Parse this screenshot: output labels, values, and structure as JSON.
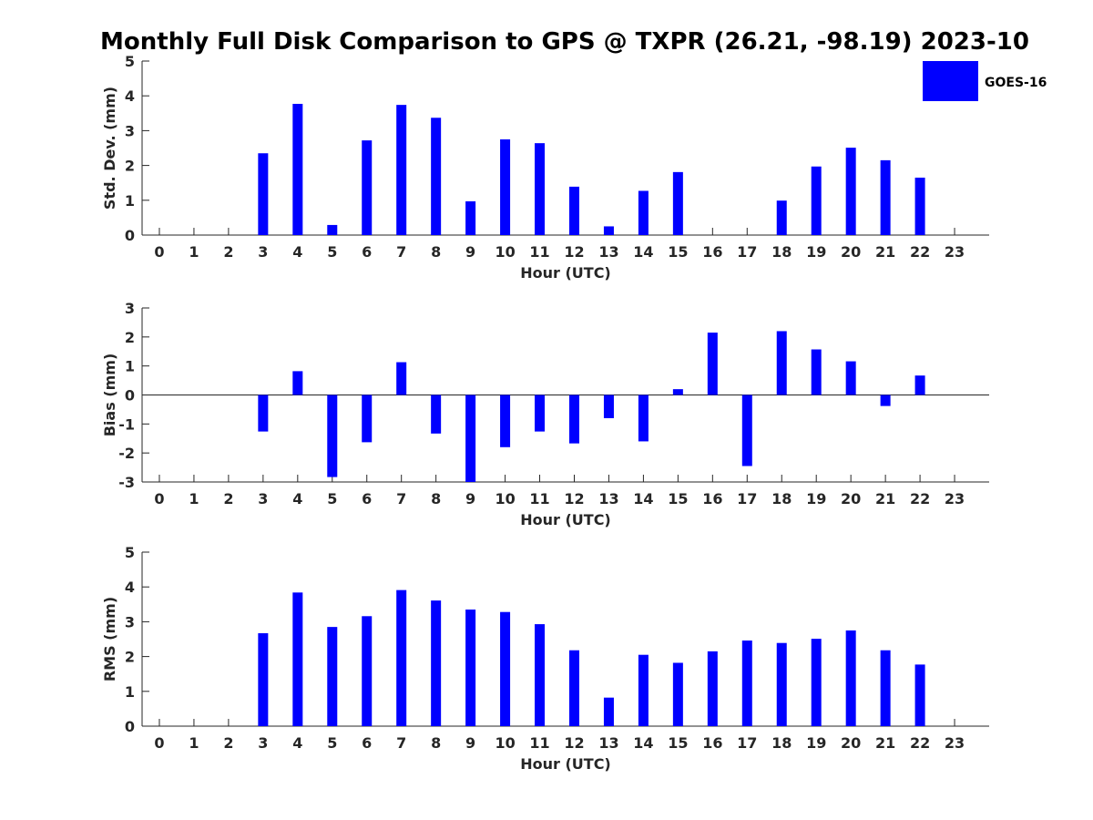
{
  "title": "Monthly Full Disk Comparison to GPS @ TXPR (26.21, -98.19) 2023-10",
  "legend": {
    "label": "GOES-16",
    "color": "#0000ff"
  },
  "chart_data": [
    {
      "type": "bar",
      "xlabel": "Hour (UTC)",
      "ylabel": "Std. Dev. (mm)",
      "ylim": [
        0,
        5
      ],
      "yticks": [
        "0",
        "1",
        "2",
        "3",
        "4",
        "5"
      ],
      "categories": [
        "0",
        "1",
        "2",
        "3",
        "4",
        "5",
        "6",
        "7",
        "8",
        "9",
        "10",
        "11",
        "12",
        "13",
        "14",
        "15",
        "16",
        "17",
        "18",
        "19",
        "20",
        "21",
        "22",
        "23"
      ],
      "series": [
        {
          "name": "GOES-16",
          "color": "#0000ff",
          "values": [
            null,
            null,
            null,
            2.35,
            3.77,
            0.29,
            2.72,
            3.74,
            3.37,
            0.97,
            2.75,
            2.64,
            1.39,
            0.25,
            1.27,
            1.81,
            null,
            null,
            0.99,
            1.97,
            2.51,
            2.15,
            1.65,
            null
          ]
        }
      ]
    },
    {
      "type": "bar",
      "xlabel": "Hour (UTC)",
      "ylabel": "Bias (mm)",
      "ylim": [
        -3,
        3
      ],
      "yticks": [
        "-3",
        "-2",
        "-1",
        "0",
        "1",
        "2",
        "3"
      ],
      "categories": [
        "0",
        "1",
        "2",
        "3",
        "4",
        "5",
        "6",
        "7",
        "8",
        "9",
        "10",
        "11",
        "12",
        "13",
        "14",
        "15",
        "16",
        "17",
        "18",
        "19",
        "20",
        "21",
        "22",
        "23"
      ],
      "series": [
        {
          "name": "GOES-16",
          "color": "#0000ff",
          "values": [
            null,
            null,
            null,
            -1.26,
            0.82,
            -2.83,
            -1.63,
            1.13,
            -1.33,
            -3.0,
            -1.8,
            -1.26,
            -1.67,
            -0.8,
            -1.6,
            0.2,
            2.15,
            -2.45,
            2.2,
            1.57,
            1.16,
            -0.38,
            0.67,
            null
          ]
        }
      ]
    },
    {
      "type": "bar",
      "xlabel": "Hour (UTC)",
      "ylabel": "RMS (mm)",
      "ylim": [
        0,
        5
      ],
      "yticks": [
        "0",
        "1",
        "2",
        "3",
        "4",
        "5"
      ],
      "categories": [
        "0",
        "1",
        "2",
        "3",
        "4",
        "5",
        "6",
        "7",
        "8",
        "9",
        "10",
        "11",
        "12",
        "13",
        "14",
        "15",
        "16",
        "17",
        "18",
        "19",
        "20",
        "21",
        "22",
        "23"
      ],
      "series": [
        {
          "name": "GOES-16",
          "color": "#0000ff",
          "values": [
            null,
            null,
            null,
            2.67,
            3.84,
            2.85,
            3.16,
            3.91,
            3.61,
            3.35,
            3.28,
            2.93,
            2.18,
            0.82,
            2.05,
            1.82,
            2.15,
            2.46,
            2.39,
            2.51,
            2.75,
            2.18,
            1.77,
            null
          ]
        }
      ]
    }
  ]
}
